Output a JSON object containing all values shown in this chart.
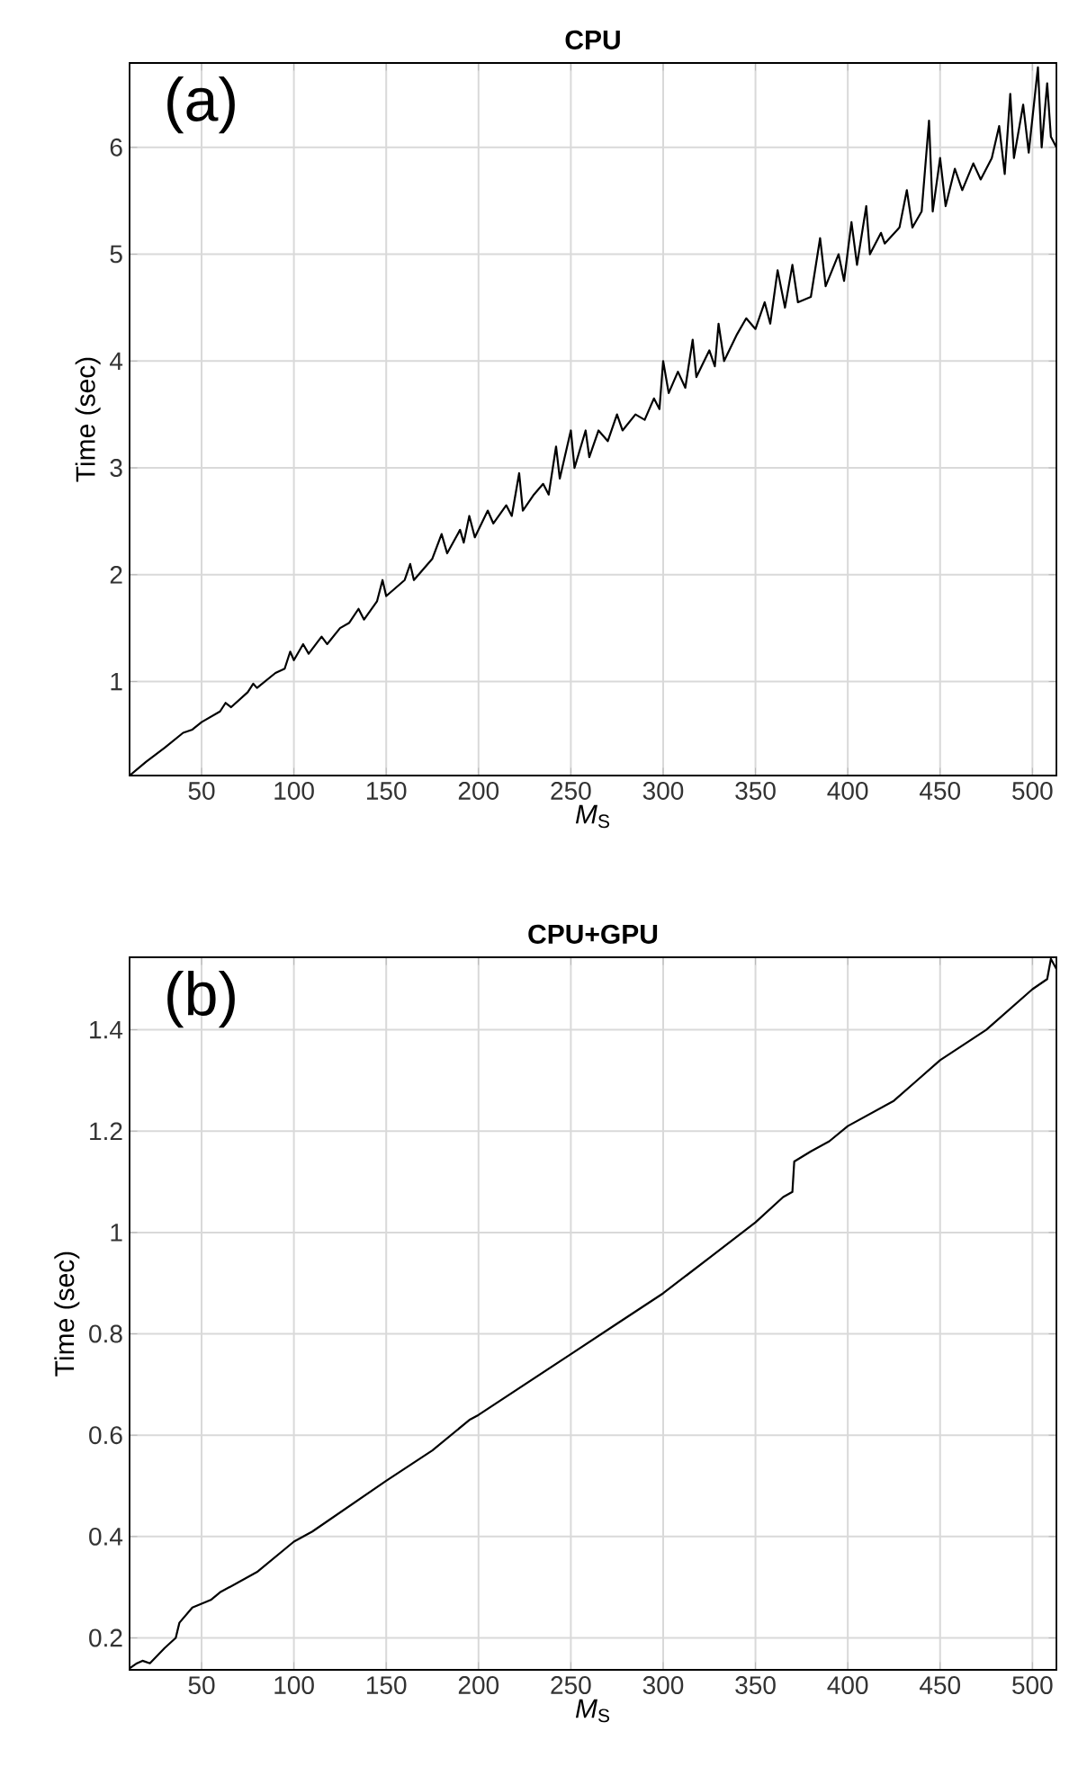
{
  "chart_data": [
    {
      "type": "line",
      "title": "CPU",
      "xlabel": "*M*$_{S}$",
      "ylabel": "Time (sec)",
      "annotations": [
        "(a)"
      ],
      "color": "#000000",
      "grid": true,
      "xlim": [
        11,
        513
      ],
      "ylim": [
        0.12,
        6.79
      ],
      "xticks": [
        50,
        100,
        150,
        200,
        250,
        300,
        350,
        400,
        450,
        500
      ],
      "yticks": [
        1,
        2,
        3,
        4,
        5,
        6
      ],
      "x": [
        11,
        20,
        30,
        40,
        45,
        50,
        60,
        63,
        66,
        75,
        78,
        80,
        90,
        95,
        98,
        100,
        105,
        108,
        115,
        118,
        125,
        130,
        135,
        138,
        145,
        148,
        150,
        160,
        163,
        165,
        175,
        180,
        183,
        190,
        192,
        195,
        198,
        205,
        208,
        215,
        218,
        222,
        224,
        230,
        235,
        238,
        242,
        244,
        250,
        252,
        258,
        260,
        265,
        270,
        275,
        278,
        285,
        290,
        295,
        298,
        300,
        303,
        308,
        312,
        316,
        318,
        325,
        328,
        330,
        333,
        340,
        345,
        350,
        355,
        358,
        362,
        366,
        370,
        373,
        380,
        385,
        388,
        395,
        398,
        402,
        405,
        410,
        412,
        418,
        420,
        428,
        432,
        435,
        440,
        444,
        446,
        450,
        453,
        458,
        462,
        468,
        472,
        478,
        482,
        485,
        488,
        490,
        495,
        498,
        503,
        505,
        508,
        510,
        513
      ],
      "values": [
        0.12,
        0.25,
        0.38,
        0.52,
        0.55,
        0.62,
        0.72,
        0.8,
        0.76,
        0.9,
        0.98,
        0.94,
        1.08,
        1.12,
        1.28,
        1.2,
        1.35,
        1.26,
        1.42,
        1.35,
        1.5,
        1.55,
        1.68,
        1.58,
        1.75,
        1.95,
        1.8,
        1.95,
        2.1,
        1.95,
        2.15,
        2.38,
        2.2,
        2.42,
        2.3,
        2.55,
        2.35,
        2.6,
        2.48,
        2.65,
        2.55,
        2.95,
        2.6,
        2.75,
        2.85,
        2.75,
        3.2,
        2.9,
        3.35,
        3.0,
        3.35,
        3.1,
        3.35,
        3.25,
        3.5,
        3.35,
        3.5,
        3.45,
        3.65,
        3.55,
        4.0,
        3.7,
        3.9,
        3.75,
        4.2,
        3.85,
        4.1,
        3.95,
        4.35,
        4.0,
        4.25,
        4.4,
        4.3,
        4.55,
        4.35,
        4.85,
        4.5,
        4.9,
        4.55,
        4.6,
        5.15,
        4.7,
        5.0,
        4.75,
        5.3,
        4.9,
        5.45,
        5.0,
        5.2,
        5.1,
        5.25,
        5.6,
        5.25,
        5.4,
        6.25,
        5.4,
        5.9,
        5.45,
        5.8,
        5.6,
        5.85,
        5.7,
        5.9,
        6.2,
        5.75,
        6.5,
        5.9,
        6.4,
        5.95,
        6.75,
        6.0,
        6.6,
        6.1,
        6.0
      ]
    },
    {
      "type": "line",
      "title": "CPU+GPU",
      "xlabel": "*M*$_{S}$",
      "ylabel": "Time (sec)",
      "annotations": [
        "(b)"
      ],
      "color": "#000000",
      "grid": true,
      "xlim": [
        11,
        513
      ],
      "ylim": [
        0.137,
        1.543
      ],
      "xticks": [
        50,
        100,
        150,
        200,
        250,
        300,
        350,
        400,
        450,
        500
      ],
      "yticks": [
        0.2,
        0.4,
        0.6,
        0.8,
        1,
        1.2,
        1.4
      ],
      "x": [
        11,
        15,
        18,
        22,
        30,
        36,
        38,
        45,
        55,
        60,
        80,
        100,
        110,
        130,
        150,
        175,
        195,
        200,
        250,
        275,
        300,
        325,
        350,
        365,
        370,
        371,
        380,
        390,
        400,
        425,
        450,
        475,
        500,
        508,
        510,
        513
      ],
      "values": [
        0.14,
        0.15,
        0.155,
        0.15,
        0.18,
        0.2,
        0.23,
        0.26,
        0.275,
        0.29,
        0.33,
        0.39,
        0.41,
        0.46,
        0.51,
        0.57,
        0.63,
        0.64,
        0.76,
        0.82,
        0.88,
        0.95,
        1.02,
        1.07,
        1.08,
        1.14,
        1.16,
        1.18,
        1.21,
        1.26,
        1.34,
        1.4,
        1.48,
        1.5,
        1.54,
        1.52
      ]
    }
  ]
}
